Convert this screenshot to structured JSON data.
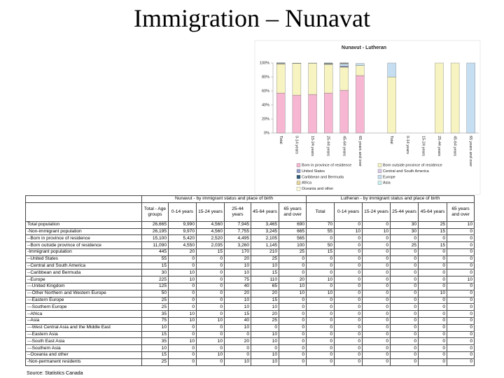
{
  "title": "Immigration – Nunavat",
  "chart_data": {
    "type": "stacked-bar",
    "title": "Nunavut - Lutheran",
    "categories": [
      "Total",
      "0-14 years",
      "15-24 years",
      "25-44 years",
      "45-64 years",
      "65 years and over",
      null,
      "Total",
      "0-14 years",
      "15-24 years",
      "25-44 years",
      "45-64 years",
      "65 years and over"
    ],
    "ylim": [
      0,
      100
    ],
    "yticks": [
      {
        "value": 0,
        "label": "0%"
      },
      {
        "value": 20,
        "label": "20%"
      },
      {
        "value": 40,
        "label": "40%"
      },
      {
        "value": 60,
        "label": "60%"
      },
      {
        "value": 80,
        "label": "80%"
      },
      {
        "value": 100,
        "label": "100%"
      }
    ],
    "series": [
      {
        "name": "Born in province of residence",
        "color": "#f7b6d2",
        "values": [
          57,
          54,
          55,
          57,
          61,
          82,
          null,
          0,
          0,
          0,
          0,
          0,
          0
        ]
      },
      {
        "name": "Born outside province of residence",
        "color": "#f7f4c2",
        "values": [
          41.6,
          45.5,
          44.6,
          41,
          33,
          14.5,
          null,
          80,
          0,
          0,
          100,
          100,
          0
        ]
      },
      {
        "name": "United States",
        "color": "#8e9cc8",
        "values": [
          0.2,
          0,
          0,
          0.3,
          0.7,
          0,
          null,
          0,
          0,
          0,
          0,
          0,
          0
        ]
      },
      {
        "name": "Central and South America",
        "color": "#d9c7e6",
        "values": [
          0.1,
          0,
          0,
          0.1,
          0.3,
          0,
          null,
          0,
          0,
          0,
          0,
          0,
          0
        ]
      },
      {
        "name": "Caribbean and Bermuda",
        "color": "#2e5a78",
        "values": [
          0.1,
          0.1,
          0,
          0.1,
          0.4,
          0,
          null,
          0,
          0,
          0,
          0,
          0,
          0
        ]
      },
      {
        "name": "Europe",
        "color": "#c6def2",
        "values": [
          0.8,
          0.1,
          0,
          0.9,
          3.2,
          2.9,
          null,
          20,
          0,
          0,
          0,
          0,
          100
        ]
      },
      {
        "name": "Africa",
        "color": "#e6d49a",
        "values": [
          0.1,
          0.1,
          0,
          0.2,
          0.6,
          0,
          null,
          0,
          0,
          0,
          0,
          0,
          0
        ]
      },
      {
        "name": "Asia",
        "color": "#c9f0f0",
        "values": [
          0.3,
          0.1,
          0.2,
          0.5,
          0.7,
          0,
          null,
          0,
          0,
          0,
          0,
          0,
          0
        ]
      },
      {
        "name": "Oceania and other",
        "color": "#fffde0",
        "values": [
          0.1,
          0,
          0.2,
          0,
          0.3,
          0,
          null,
          0,
          0,
          0,
          0,
          0,
          0
        ]
      }
    ]
  },
  "table": {
    "group_headers": [
      "Nunavut - by immigrant status and place of birth",
      "Lutheran - by immigrant status and place of birth"
    ],
    "column_headers": [
      "Total - Age groups",
      "0-14 years",
      "15-24 years",
      "25-44 years",
      "45-64 years",
      "65 years and over",
      "Total",
      "0-14 years",
      "15-24 years",
      "25-44 years",
      "45-64 years",
      "65 years and over"
    ],
    "rows": [
      [
        "Total population",
        "26,665",
        "9,990",
        "4,560",
        "7,945",
        "3,465",
        "690",
        "70",
        "0",
        "0",
        "30",
        "25",
        "10"
      ],
      [
        "-Non-immigrant population",
        "26,195",
        "9,970",
        "4,560",
        "7,755",
        "3,245",
        "665",
        "55",
        "10",
        "10",
        "30",
        "15",
        "0"
      ],
      [
        "--Born in province of residence",
        "15,100",
        "5,420",
        "2,520",
        "4,495",
        "2,105",
        "565",
        "0",
        "0",
        "0",
        "0",
        "0",
        "0"
      ],
      [
        "--Born outside province of residence",
        "11,090",
        "4,550",
        "2,035",
        "3,260",
        "1,145",
        "100",
        "50",
        "0",
        "0",
        "25",
        "15",
        "0"
      ],
      [
        "-Immigrant population",
        "445",
        "20",
        "15",
        "170",
        "210",
        "25",
        "15",
        "0",
        "0",
        "0",
        "0",
        "0"
      ],
      [
        "--United States",
        "55",
        "0",
        "0",
        "20",
        "25",
        "0",
        "0",
        "0",
        "0",
        "0",
        "0",
        "0"
      ],
      [
        "--Central and South America",
        "15",
        "0",
        "0",
        "10",
        "10",
        "0",
        "0",
        "0",
        "0",
        "0",
        "0",
        "0"
      ],
      [
        "--Caribbean and Bermuda",
        "30",
        "10",
        "0",
        "10",
        "15",
        "0",
        "0",
        "0",
        "0",
        "0",
        "0",
        "0"
      ],
      [
        "--Europe",
        "225",
        "10",
        "0",
        "75",
        "110",
        "20",
        "10",
        "0",
        "0",
        "0",
        "0",
        "10"
      ],
      [
        "---United Kingdom",
        "125",
        "0",
        "0",
        "40",
        "65",
        "10",
        "0",
        "0",
        "0",
        "0",
        "0",
        "0"
      ],
      [
        "---Other Northern and Western Europe",
        "50",
        "0",
        "0",
        "20",
        "20",
        "10",
        "10",
        "0",
        "0",
        "0",
        "10",
        "0"
      ],
      [
        "---Eastern Europe",
        "25",
        "0",
        "0",
        "10",
        "15",
        "0",
        "0",
        "0",
        "0",
        "0",
        "0",
        "0"
      ],
      [
        "---Southern Europe",
        "25",
        "0",
        "0",
        "10",
        "10",
        "0",
        "0",
        "0",
        "0",
        "0",
        "0",
        "0"
      ],
      [
        "--Africa",
        "35",
        "10",
        "0",
        "15",
        "20",
        "0",
        "0",
        "0",
        "0",
        "0",
        "0",
        "0"
      ],
      [
        "--Asia",
        "75",
        "10",
        "10",
        "40",
        "25",
        "0",
        "0",
        "0",
        "0",
        "0",
        "0",
        "0"
      ],
      [
        "---West Central Asia and the Middle East",
        "10",
        "0",
        "0",
        "10",
        "0",
        "0",
        "0",
        "0",
        "0",
        "0",
        "0",
        "0"
      ],
      [
        "---Eastern Asia",
        "15",
        "0",
        "0",
        "0",
        "10",
        "0",
        "0",
        "0",
        "0",
        "0",
        "0",
        "0"
      ],
      [
        "---South East Asia",
        "35",
        "10",
        "10",
        "20",
        "10",
        "0",
        "0",
        "0",
        "0",
        "0",
        "0",
        "0"
      ],
      [
        "---Southern Asia",
        "10",
        "0",
        "0",
        "0",
        "0",
        "0",
        "0",
        "0",
        "0",
        "0",
        "0",
        "0"
      ],
      [
        "--Oceania and other",
        "15",
        "0",
        "10",
        "0",
        "10",
        "0",
        "0",
        "0",
        "0",
        "0",
        "0",
        "0"
      ],
      [
        "-Non-permanent residents",
        "25",
        "0",
        "0",
        "10",
        "10",
        "0",
        "0",
        "0",
        "0",
        "0",
        "0",
        "0"
      ]
    ]
  },
  "source": "Source: Statistics Canada"
}
